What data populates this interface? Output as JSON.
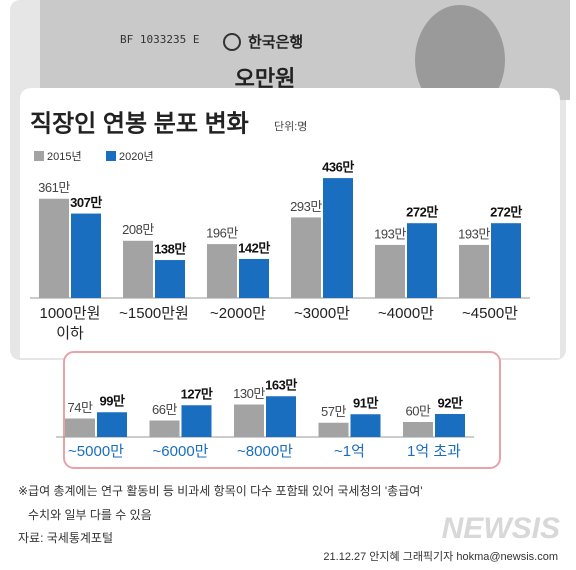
{
  "illustration": {
    "serial": "BF 1033235 E",
    "bank": "한국은행",
    "denomination": "오만원"
  },
  "chart_data": [
    {
      "type": "bar",
      "title": "직장인 연봉 분포 변화",
      "unit": "단위:명",
      "categories": [
        "1000만원 이하",
        "~1500만원",
        "~2000만",
        "~3000만",
        "~4000만",
        "~4500만"
      ],
      "series": [
        {
          "name": "2015년",
          "color": "#a3a3a3",
          "values": [
            361,
            208,
            196,
            293,
            193,
            193
          ],
          "value_labels": [
            "361만",
            "208만",
            "196만",
            "293만",
            "193만",
            "193만"
          ]
        },
        {
          "name": "2020년",
          "color": "#1a6ec0",
          "values": [
            307,
            138,
            142,
            436,
            272,
            272
          ],
          "value_labels": [
            "307만",
            "138만",
            "142만",
            "436만",
            "272만",
            "272만"
          ]
        }
      ]
    },
    {
      "type": "bar",
      "categories": [
        "~5000만",
        "~6000만",
        "~8000만",
        "~1억",
        "1억 초과"
      ],
      "series": [
        {
          "color": "#a3a3a3",
          "values": [
            74,
            66,
            130,
            57,
            60
          ],
          "value_labels": [
            "74만",
            "66만",
            "130만",
            "57만",
            "60만"
          ]
        },
        {
          "color": "#1a6ec0",
          "values": [
            99,
            127,
            163,
            91,
            92
          ],
          "value_labels": [
            "99만",
            "127만",
            "163만",
            "91만",
            "92만"
          ]
        }
      ]
    }
  ],
  "footnote": [
    "※급여 총계에는 연구 활동비 등 비과세 항목이 다수 포함돼 있어 국세청의 '총급여'",
    "수치와 일부 다를 수 있음"
  ],
  "source": "자료: 국세통계포털",
  "credit": "21.12.27 안지혜 그래픽기자 hokma@newsis.com",
  "watermark": "NEWSIS"
}
